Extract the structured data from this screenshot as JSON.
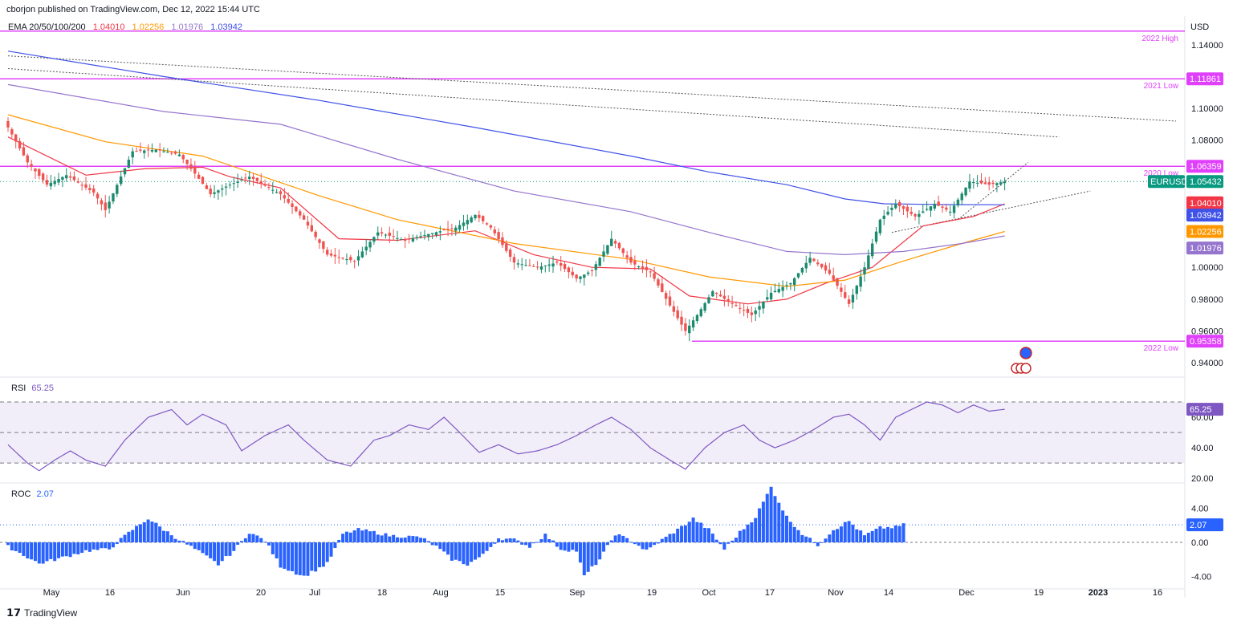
{
  "header": {
    "published": "cborjon published on TradingView.com, Dec 12, 2022 15:44 UTC",
    "currency": "USD"
  },
  "legend": {
    "ema_label": "EMA 20/50/100/200",
    "ema20": "1.04010",
    "ema50": "1.02256",
    "ema100": "1.01976",
    "ema200": "1.03942",
    "rsi_label": "RSI",
    "rsi_value": "65.25",
    "roc_label": "ROC",
    "roc_value": "2.07"
  },
  "colors": {
    "up": "#26a69a",
    "upBody": "#1b8a6e",
    "down": "#ef5350",
    "ema20": "#f23645",
    "ema50": "#ff9800",
    "ema100": "#9575cd",
    "ema200": "#3f51e8",
    "magenta": "#e040fb",
    "rsi": "#7e57c2",
    "roc": "#2962ff",
    "symbol": "#089981"
  },
  "footer": {
    "brand": "TradingView"
  },
  "chart_data": [
    {
      "type": "candlestick",
      "symbol": "EURUSD",
      "last_price": "1.05432",
      "y_ticks": [
        "1.14000",
        "1.10000",
        "1.08000",
        "1.00000",
        "0.98000",
        "0.96000",
        "0.94000"
      ],
      "ylim": [
        0.933,
        1.15
      ],
      "x_ticks": [
        "May",
        "16",
        "Jun",
        "20",
        "Jul",
        "18",
        "Aug",
        "15",
        "Sep",
        "19",
        "Oct",
        "17",
        "Nov",
        "14",
        "Dec",
        "19",
        "2023",
        "16"
      ],
      "levels": [
        {
          "name": "2022 High",
          "value": 1.1486,
          "tag": ""
        },
        {
          "name": "2021 Low",
          "value": 1.11861,
          "tag": "1.11861"
        },
        {
          "name": "2020 Low",
          "value": 1.06359,
          "tag": "1.06359"
        },
        {
          "name": "2022 Low",
          "value": 0.95358,
          "tag": "0.95358"
        }
      ],
      "price_tags": [
        {
          "label": "1.04010",
          "value": 1.0401
        },
        {
          "label": "1.03942",
          "value": 1.03942
        },
        {
          "label": "1.02256",
          "value": 1.02256
        },
        {
          "label": "1.01976",
          "value": 1.01976
        }
      ],
      "anchors": [
        {
          "i": 0,
          "v": 1.088
        },
        {
          "i": 5,
          "v": 1.066
        },
        {
          "i": 10,
          "v": 1.052
        },
        {
          "i": 15,
          "v": 1.058
        },
        {
          "i": 22,
          "v": 1.047
        },
        {
          "i": 25,
          "v": 1.036
        },
        {
          "i": 32,
          "v": 1.073
        },
        {
          "i": 38,
          "v": 1.074
        },
        {
          "i": 44,
          "v": 1.071
        },
        {
          "i": 48,
          "v": 1.059
        },
        {
          "i": 52,
          "v": 1.046
        },
        {
          "i": 57,
          "v": 1.052
        },
        {
          "i": 62,
          "v": 1.057
        },
        {
          "i": 70,
          "v": 1.046
        },
        {
          "i": 76,
          "v": 1.03
        },
        {
          "i": 82,
          "v": 1.008
        },
        {
          "i": 89,
          "v": 1.004
        },
        {
          "i": 95,
          "v": 1.022
        },
        {
          "i": 102,
          "v": 1.017
        },
        {
          "i": 108,
          "v": 1.021
        },
        {
          "i": 115,
          "v": 1.025
        },
        {
          "i": 120,
          "v": 1.033
        },
        {
          "i": 124,
          "v": 1.025
        },
        {
          "i": 130,
          "v": 1.003
        },
        {
          "i": 136,
          "v": 1.0
        },
        {
          "i": 141,
          "v": 1.003
        },
        {
          "i": 146,
          "v": 0.993
        },
        {
          "i": 150,
          "v": 0.998
        },
        {
          "i": 155,
          "v": 1.018
        },
        {
          "i": 160,
          "v": 1.003
        },
        {
          "i": 165,
          "v": 0.997
        },
        {
          "i": 170,
          "v": 0.976
        },
        {
          "i": 174,
          "v": 0.96
        },
        {
          "i": 177,
          "v": 0.97
        },
        {
          "i": 181,
          "v": 0.985
        },
        {
          "i": 186,
          "v": 0.977
        },
        {
          "i": 191,
          "v": 0.97
        },
        {
          "i": 196,
          "v": 0.984
        },
        {
          "i": 201,
          "v": 0.99
        },
        {
          "i": 206,
          "v": 1.006
        },
        {
          "i": 211,
          "v": 0.996
        },
        {
          "i": 216,
          "v": 0.977
        },
        {
          "i": 220,
          "v": 1.0
        },
        {
          "i": 224,
          "v": 1.03
        },
        {
          "i": 228,
          "v": 1.04
        },
        {
          "i": 233,
          "v": 1.032
        },
        {
          "i": 238,
          "v": 1.04
        },
        {
          "i": 242,
          "v": 1.035
        },
        {
          "i": 247,
          "v": 1.054
        },
        {
          "i": 252,
          "v": 1.052
        },
        {
          "i": 256,
          "v": 1.054
        }
      ],
      "series": [
        {
          "name": "EMA 20",
          "points": [
            [
              0,
              1.082
            ],
            [
              20,
              1.058
            ],
            [
              35,
              1.062
            ],
            [
              50,
              1.063
            ],
            [
              57,
              1.057
            ],
            [
              70,
              1.05
            ],
            [
              85,
              1.018
            ],
            [
              100,
              1.017
            ],
            [
              120,
              1.023
            ],
            [
              135,
              1.008
            ],
            [
              150,
              1.0
            ],
            [
              165,
              0.999
            ],
            [
              175,
              0.982
            ],
            [
              190,
              0.977
            ],
            [
              200,
              0.98
            ],
            [
              210,
              0.99
            ],
            [
              222,
              1.0
            ],
            [
              235,
              1.026
            ],
            [
              248,
              1.032
            ],
            [
              256,
              1.04
            ]
          ]
        },
        {
          "name": "EMA 50",
          "points": [
            [
              0,
              1.096
            ],
            [
              25,
              1.079
            ],
            [
              50,
              1.07
            ],
            [
              80,
              1.045
            ],
            [
              100,
              1.03
            ],
            [
              130,
              1.015
            ],
            [
              160,
              1.005
            ],
            [
              180,
              0.994
            ],
            [
              200,
              0.988
            ],
            [
              215,
              0.992
            ],
            [
              230,
              1.004
            ],
            [
              245,
              1.015
            ],
            [
              256,
              1.0226
            ]
          ]
        },
        {
          "name": "EMA 100",
          "points": [
            [
              0,
              1.115
            ],
            [
              40,
              1.098
            ],
            [
              70,
              1.09
            ],
            [
              100,
              1.068
            ],
            [
              130,
              1.048
            ],
            [
              160,
              1.035
            ],
            [
              180,
              1.022
            ],
            [
              200,
              1.01
            ],
            [
              215,
              1.008
            ],
            [
              230,
              1.01
            ],
            [
              245,
              1.015
            ],
            [
              256,
              1.0198
            ]
          ]
        },
        {
          "name": "EMA 200",
          "points": [
            [
              0,
              1.136
            ],
            [
              40,
              1.12
            ],
            [
              80,
              1.105
            ],
            [
              120,
              1.088
            ],
            [
              160,
              1.07
            ],
            [
              180,
              1.06
            ],
            [
              200,
              1.052
            ],
            [
              215,
              1.043
            ],
            [
              225,
              1.04
            ],
            [
              240,
              1.0395
            ],
            [
              256,
              1.0394
            ]
          ]
        }
      ]
    },
    {
      "type": "line",
      "name": "RSI",
      "y_ticks": [
        "60.00",
        "40.00",
        "20.00"
      ],
      "ylim": [
        18,
        80
      ],
      "band": [
        30,
        70
      ],
      "midline": 50,
      "anchors": [
        {
          "i": 0,
          "v": 42
        },
        {
          "i": 5,
          "v": 30
        },
        {
          "i": 8,
          "v": 25
        },
        {
          "i": 12,
          "v": 32
        },
        {
          "i": 16,
          "v": 38
        },
        {
          "i": 20,
          "v": 32
        },
        {
          "i": 25,
          "v": 28
        },
        {
          "i": 30,
          "v": 45
        },
        {
          "i": 36,
          "v": 60
        },
        {
          "i": 42,
          "v": 65
        },
        {
          "i": 46,
          "v": 55
        },
        {
          "i": 50,
          "v": 62
        },
        {
          "i": 56,
          "v": 55
        },
        {
          "i": 60,
          "v": 38
        },
        {
          "i": 66,
          "v": 48
        },
        {
          "i": 72,
          "v": 55
        },
        {
          "i": 76,
          "v": 45
        },
        {
          "i": 82,
          "v": 32
        },
        {
          "i": 88,
          "v": 28
        },
        {
          "i": 94,
          "v": 45
        },
        {
          "i": 98,
          "v": 48
        },
        {
          "i": 103,
          "v": 55
        },
        {
          "i": 108,
          "v": 52
        },
        {
          "i": 112,
          "v": 60
        },
        {
          "i": 116,
          "v": 50
        },
        {
          "i": 121,
          "v": 37
        },
        {
          "i": 126,
          "v": 42
        },
        {
          "i": 131,
          "v": 36
        },
        {
          "i": 136,
          "v": 38
        },
        {
          "i": 141,
          "v": 42
        },
        {
          "i": 146,
          "v": 48
        },
        {
          "i": 151,
          "v": 55
        },
        {
          "i": 155,
          "v": 60
        },
        {
          "i": 160,
          "v": 52
        },
        {
          "i": 165,
          "v": 40
        },
        {
          "i": 170,
          "v": 32
        },
        {
          "i": 174,
          "v": 26
        },
        {
          "i": 179,
          "v": 40
        },
        {
          "i": 184,
          "v": 50
        },
        {
          "i": 189,
          "v": 55
        },
        {
          "i": 193,
          "v": 45
        },
        {
          "i": 197,
          "v": 40
        },
        {
          "i": 202,
          "v": 45
        },
        {
          "i": 207,
          "v": 52
        },
        {
          "i": 212,
          "v": 60
        },
        {
          "i": 216,
          "v": 62
        },
        {
          "i": 220,
          "v": 55
        },
        {
          "i": 224,
          "v": 45
        },
        {
          "i": 228,
          "v": 60
        },
        {
          "i": 232,
          "v": 65
        },
        {
          "i": 236,
          "v": 70
        },
        {
          "i": 240,
          "v": 68
        },
        {
          "i": 244,
          "v": 63
        },
        {
          "i": 248,
          "v": 68
        },
        {
          "i": 252,
          "v": 64
        },
        {
          "i": 256,
          "v": 65.25
        }
      ]
    },
    {
      "type": "bar",
      "name": "ROC",
      "y_ticks": [
        "4.00",
        "0.00",
        "-4.00"
      ],
      "ylim": [
        -5.1,
        6.8
      ],
      "anchors": [
        {
          "i": 0,
          "v": -0.5
        },
        {
          "i": 8,
          "v": -2.5
        },
        {
          "i": 14,
          "v": -1.8
        },
        {
          "i": 20,
          "v": -1.0
        },
        {
          "i": 26,
          "v": -0.8
        },
        {
          "i": 32,
          "v": 1.5
        },
        {
          "i": 36,
          "v": 2.8
        },
        {
          "i": 40,
          "v": 1.5
        },
        {
          "i": 44,
          "v": 0.3
        },
        {
          "i": 48,
          "v": -0.8
        },
        {
          "i": 54,
          "v": -2.6
        },
        {
          "i": 58,
          "v": -1.0
        },
        {
          "i": 62,
          "v": 1.2
        },
        {
          "i": 66,
          "v": 0.2
        },
        {
          "i": 70,
          "v": -2.8
        },
        {
          "i": 76,
          "v": -4.0
        },
        {
          "i": 82,
          "v": -2.5
        },
        {
          "i": 86,
          "v": 1.0
        },
        {
          "i": 90,
          "v": 1.5
        },
        {
          "i": 94,
          "v": 1.2
        },
        {
          "i": 98,
          "v": 0.8
        },
        {
          "i": 102,
          "v": 0.7
        },
        {
          "i": 106,
          "v": 0.6
        },
        {
          "i": 110,
          "v": -0.5
        },
        {
          "i": 114,
          "v": -2.0
        },
        {
          "i": 118,
          "v": -2.6
        },
        {
          "i": 122,
          "v": -1.5
        },
        {
          "i": 126,
          "v": 0.5
        },
        {
          "i": 130,
          "v": 0.3
        },
        {
          "i": 134,
          "v": -0.5
        },
        {
          "i": 138,
          "v": 0.9
        },
        {
          "i": 142,
          "v": -0.8
        },
        {
          "i": 146,
          "v": -1.0
        },
        {
          "i": 148,
          "v": -4.0
        },
        {
          "i": 152,
          "v": -2.0
        },
        {
          "i": 156,
          "v": 1.0
        },
        {
          "i": 160,
          "v": 0.2
        },
        {
          "i": 164,
          "v": -1.0
        },
        {
          "i": 168,
          "v": 0.3
        },
        {
          "i": 172,
          "v": 1.5
        },
        {
          "i": 176,
          "v": 2.8
        },
        {
          "i": 180,
          "v": 1.5
        },
        {
          "i": 184,
          "v": -0.8
        },
        {
          "i": 188,
          "v": 1.2
        },
        {
          "i": 192,
          "v": 3.0
        },
        {
          "i": 196,
          "v": 6.5
        },
        {
          "i": 200,
          "v": 3.0
        },
        {
          "i": 204,
          "v": 1.0
        },
        {
          "i": 208,
          "v": -0.3
        },
        {
          "i": 212,
          "v": 1.5
        },
        {
          "i": 216,
          "v": 2.5
        },
        {
          "i": 220,
          "v": 0.8
        },
        {
          "i": 224,
          "v": 1.7
        },
        {
          "i": 228,
          "v": 1.8
        },
        {
          "i": 230,
          "v": 2.07
        }
      ]
    }
  ]
}
